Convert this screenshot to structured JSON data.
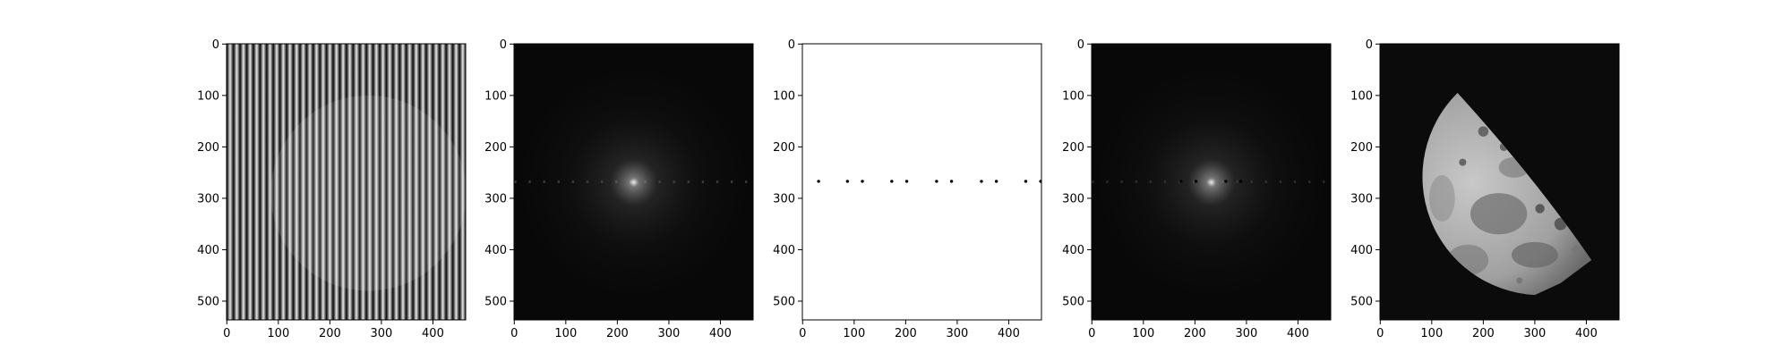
{
  "chart_data": [
    {
      "type": "image",
      "xlim": [
        -0.5,
        463.5
      ],
      "ylim": [
        536.5,
        -0.5
      ],
      "xticks": [
        0,
        100,
        200,
        300,
        400
      ],
      "yticks": [
        0,
        100,
        200,
        300,
        400,
        500
      ]
    },
    {
      "type": "image",
      "xlim": [
        -0.5,
        463.5
      ],
      "ylim": [
        536.5,
        -0.5
      ],
      "xticks": [
        0,
        100,
        200,
        300,
        400
      ],
      "yticks": [
        0,
        100,
        200,
        300,
        400,
        500
      ]
    },
    {
      "type": "image",
      "xlim": [
        -0.5,
        463.5
      ],
      "ylim": [
        536.5,
        -0.5
      ],
      "xticks": [
        0,
        100,
        200,
        300,
        400
      ],
      "yticks": [
        0,
        100,
        200,
        300,
        400,
        500
      ]
    },
    {
      "type": "image",
      "xlim": [
        -0.5,
        463.5
      ],
      "ylim": [
        536.5,
        -0.5
      ],
      "xticks": [
        0,
        100,
        200,
        300,
        400
      ],
      "yticks": [
        0,
        100,
        200,
        300,
        400,
        500
      ]
    },
    {
      "type": "image",
      "xlim": [
        -0.5,
        463.5
      ],
      "ylim": [
        536.5,
        -0.5
      ],
      "xticks": [
        0,
        100,
        200,
        300,
        400
      ],
      "yticks": [
        0,
        100,
        200,
        300,
        400,
        500
      ]
    }
  ]
}
